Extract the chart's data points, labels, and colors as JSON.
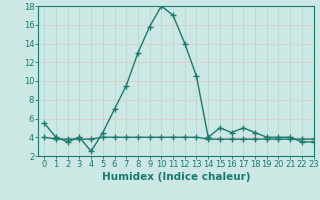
{
  "x": [
    0,
    1,
    2,
    3,
    4,
    5,
    6,
    7,
    8,
    9,
    10,
    11,
    12,
    13,
    14,
    15,
    16,
    17,
    18,
    19,
    20,
    21,
    22,
    23
  ],
  "y_main": [
    5.5,
    4.0,
    3.5,
    4.0,
    2.5,
    4.5,
    7.0,
    9.5,
    13.0,
    15.8,
    18.0,
    17.0,
    14.0,
    10.5,
    4.0,
    5.0,
    4.5,
    5.0,
    4.5,
    4.0,
    4.0,
    4.0,
    3.5,
    3.5
  ],
  "y_flat": [
    4.0,
    3.8,
    3.8,
    3.8,
    3.8,
    4.0,
    4.0,
    4.0,
    4.0,
    4.0,
    4.0,
    4.0,
    4.0,
    4.0,
    3.8,
    3.8,
    3.8,
    3.8,
    3.8,
    3.8,
    3.8,
    3.8,
    3.8,
    3.8
  ],
  "line_color": "#1a7a6e",
  "bg_color": "#cce8e4",
  "grid_color_h": "#e8c8c8",
  "grid_color_v": "#b8d8d4",
  "xlabel": "Humidex (Indice chaleur)",
  "ylim": [
    2,
    18
  ],
  "xlim": [
    -0.5,
    23
  ],
  "yticks": [
    2,
    4,
    6,
    8,
    10,
    12,
    14,
    16,
    18
  ],
  "xticks": [
    0,
    1,
    2,
    3,
    4,
    5,
    6,
    7,
    8,
    9,
    10,
    11,
    12,
    13,
    14,
    15,
    16,
    17,
    18,
    19,
    20,
    21,
    22,
    23
  ],
  "tick_fontsize": 6,
  "xlabel_fontsize": 7.5,
  "marker": "+",
  "linewidth": 1.0,
  "markersize": 4,
  "markeredgewidth": 1.0
}
